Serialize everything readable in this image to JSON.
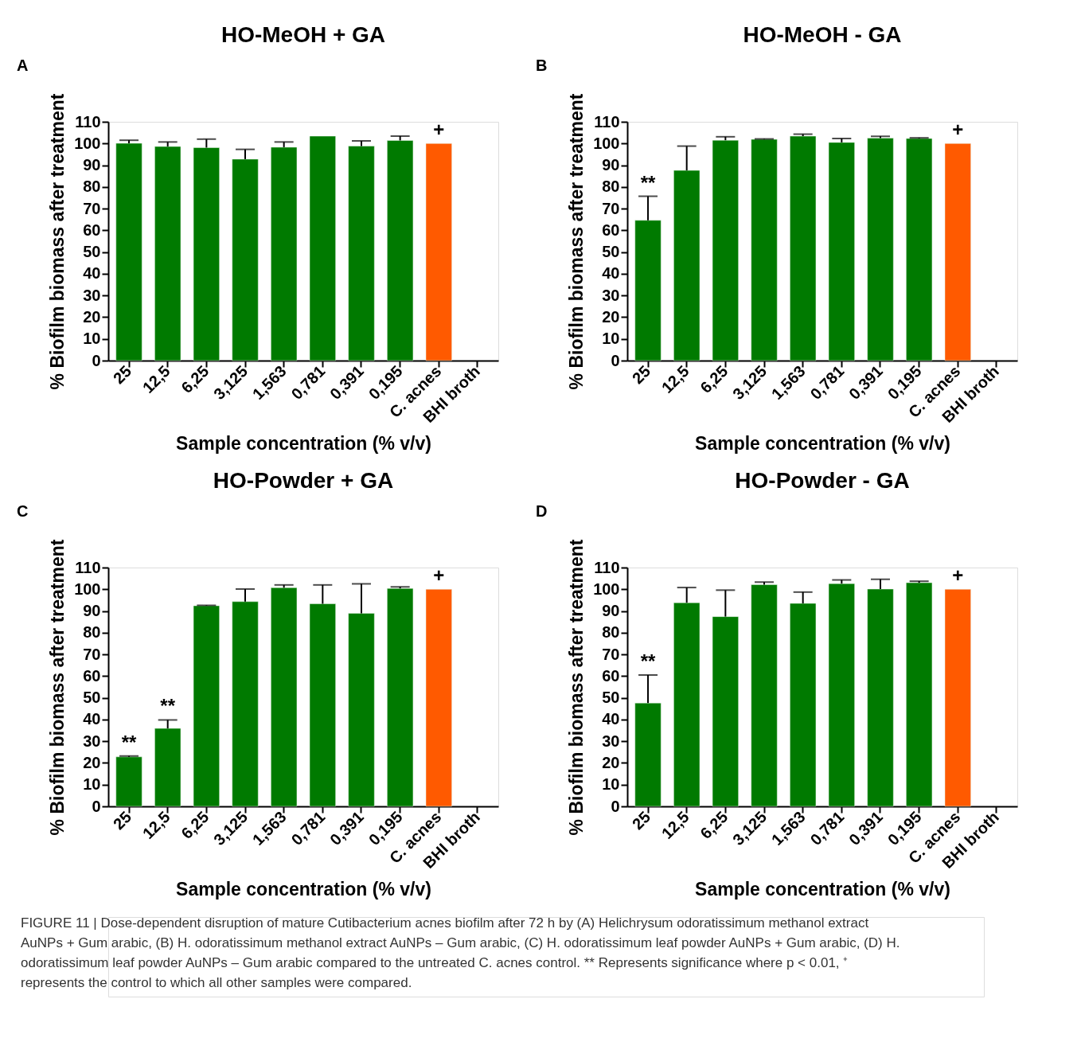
{
  "chart_data": [
    {
      "type": "bar",
      "title": "HO-MeOH + GA",
      "xlabel": "Sample concentration (% v/v)",
      "ylabel": "% Biofilm biomass after treatment",
      "categories": [
        "25",
        "12,5",
        "6,25",
        "3,125",
        "1,563",
        "0,781",
        "0,391",
        "0,195",
        "C. acnes",
        "BHI broth"
      ],
      "values": [
        100.1,
        98.6,
        98.1,
        92.8,
        98.3,
        103.4,
        98.8,
        101.4,
        100,
        null
      ],
      "colors": [
        "#007a00",
        "#007a00",
        "#007a00",
        "#007a00",
        "#007a00",
        "#007a00",
        "#007a00",
        "#007a00",
        "#ff5a00",
        null
      ],
      "errors": [
        [
          100.1,
          101.5
        ],
        [
          98.6,
          100.7
        ],
        [
          98.1,
          102.0
        ],
        [
          92.8,
          97.3
        ],
        [
          98.3,
          100.7
        ],
        null,
        [
          98.8,
          101.2
        ],
        [
          101.4,
          103.4
        ],
        null,
        null
      ],
      "ylim": [
        0,
        110
      ],
      "yticks": [
        0,
        10,
        20,
        30,
        40,
        50,
        60,
        70,
        80,
        90,
        100,
        110
      ],
      "annotations": [
        "A",
        {
          "text": "+",
          "x": "C. acnes",
          "y": 100
        }
      ]
    },
    {
      "type": "bar",
      "title": "HO-MeOH - GA",
      "xlabel": "Sample concentration (% v/v)",
      "ylabel": "% Biofilm biomass after treatment",
      "categories": [
        "25",
        "12,5",
        "6,25",
        "3,125",
        "1,563",
        "0,781",
        "0,391",
        "0,195",
        "C. acnes",
        "BHI broth"
      ],
      "values": [
        64.6,
        87.6,
        101.5,
        101.9,
        103.4,
        100.5,
        102.5,
        102.3,
        100,
        null
      ],
      "colors": [
        "#007a00",
        "#007a00",
        "#007a00",
        "#007a00",
        "#007a00",
        "#007a00",
        "#007a00",
        "#007a00",
        "#ff5a00",
        null
      ],
      "errors": [
        [
          64.6,
          75.7
        ],
        [
          87.6,
          98.8
        ],
        [
          101.5,
          103.1
        ],
        [
          101.9,
          102.1
        ],
        [
          103.4,
          104.3
        ],
        [
          100.5,
          102.3
        ],
        [
          102.5,
          103.3
        ],
        [
          102.3,
          102.6
        ],
        null,
        null
      ],
      "ylim": [
        0,
        110
      ],
      "yticks": [
        0,
        10,
        20,
        30,
        40,
        50,
        60,
        70,
        80,
        90,
        100,
        110
      ],
      "annotations": [
        "B",
        {
          "text": "**",
          "x": "25",
          "y": 75.7
        },
        {
          "text": "+",
          "x": "C. acnes",
          "y": 100
        }
      ]
    },
    {
      "type": "bar",
      "title": "HO-Powder + GA",
      "xlabel": "Sample concentration (% v/v)",
      "ylabel": "% Biofilm biomass after treatment",
      "categories": [
        "25",
        "12,5",
        "6,25",
        "3,125",
        "1,563",
        "0,781",
        "0,391",
        "0,195",
        "C. acnes",
        "BHI broth"
      ],
      "values": [
        22.8,
        35.9,
        92.4,
        94.3,
        100.7,
        93.3,
        88.9,
        100.4,
        100,
        null
      ],
      "colors": [
        "#007a00",
        "#007a00",
        "#007a00",
        "#007a00",
        "#007a00",
        "#007a00",
        "#007a00",
        "#007a00",
        "#ff5a00",
        null
      ],
      "errors": [
        [
          22.8,
          23.2
        ],
        [
          35.9,
          39.8
        ],
        [
          92.4,
          92.6
        ],
        [
          94.3,
          100.1
        ],
        [
          100.7,
          102.0
        ],
        [
          93.3,
          102.0
        ],
        [
          88.9,
          102.5
        ],
        [
          100.4,
          101.1
        ],
        null,
        null
      ],
      "ylim": [
        0,
        110
      ],
      "yticks": [
        0,
        10,
        20,
        30,
        40,
        50,
        60,
        70,
        80,
        90,
        100,
        110
      ],
      "annotations": [
        "C",
        {
          "text": "**",
          "x": "25",
          "y": 23.2
        },
        {
          "text": "**",
          "x": "12,5",
          "y": 39.8
        },
        {
          "text": "+",
          "x": "C. acnes",
          "y": 100
        }
      ]
    },
    {
      "type": "bar",
      "title": "HO-Powder - GA",
      "xlabel": "Sample concentration (% v/v)",
      "ylabel": "% Biofilm biomass after treatment",
      "categories": [
        "25",
        "12,5",
        "6,25",
        "3,125",
        "1,563",
        "0,781",
        "0,391",
        "0,195",
        "C. acnes",
        "BHI broth"
      ],
      "values": [
        47.6,
        93.8,
        87.4,
        102.1,
        93.5,
        102.6,
        100.1,
        103.0,
        100,
        null
      ],
      "colors": [
        "#007a00",
        "#007a00",
        "#007a00",
        "#007a00",
        "#007a00",
        "#007a00",
        "#007a00",
        "#007a00",
        "#ff5a00",
        null
      ],
      "errors": [
        [
          47.6,
          60.5
        ],
        [
          93.8,
          100.8
        ],
        [
          87.4,
          99.6
        ],
        [
          102.1,
          103.3
        ],
        [
          93.5,
          98.7
        ],
        [
          102.6,
          104.3
        ],
        [
          100.1,
          104.6
        ],
        [
          103.0,
          103.7
        ],
        null,
        null
      ],
      "ylim": [
        0,
        110
      ],
      "yticks": [
        0,
        10,
        20,
        30,
        40,
        50,
        60,
        70,
        80,
        90,
        100,
        110
      ],
      "annotations": [
        "D",
        {
          "text": "**",
          "x": "25",
          "y": 60.5
        },
        {
          "text": "+",
          "x": "C. acnes",
          "y": 100
        }
      ]
    },
    {
      "type": "other",
      "annotations": [
        "FIGURE 11 | Dose-dependent disruption of mature Cutibacterium acnes biofilm after 72 h by (A) Helichrysum odoratissimum methanol extract AuNPs + Gum arabic, (B) H. odoratissimum methanol extract AuNPs – Gum arabic, (C) H. odoratissimum leaf powder AuNPs + Gum arabic, (D) H. odoratissimum leaf powder AuNPs – Gum arabic compared to the untreated C. acnes control. ** Represents significance where p < 0.01, ⁺ represents the control to which all other samples were compared."
      ]
    }
  ]
}
